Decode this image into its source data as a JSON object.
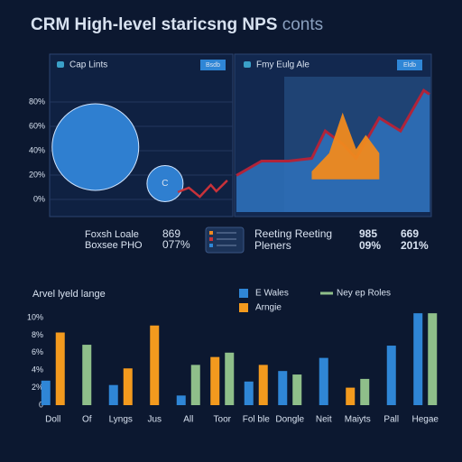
{
  "title": "CRM High-level staricsng NPS",
  "title_suffix": "conts",
  "stats": [
    {
      "label1": "Foxsh Loale",
      "label2": "Boxsee PHO",
      "num1": "869",
      "num2": "077%"
    },
    {
      "label1": "Reeting Reeting",
      "label2": "Pleners",
      "num1": "985",
      "num2": "09%",
      "num3": "669",
      "num4": "201%"
    }
  ],
  "chart_data": [
    {
      "type": "bubble",
      "header": "Cap Lints",
      "button": "Bsdb",
      "xlim": [
        0,
        10
      ],
      "ylim": [
        0,
        100
      ],
      "yticks": [
        {
          "value": 80,
          "label": "80%"
        },
        {
          "value": 60,
          "label": "60%"
        },
        {
          "value": 40,
          "label": "40%"
        },
        {
          "value": 20,
          "label": "20%"
        },
        {
          "value": 0,
          "label": "0%"
        }
      ],
      "grid": true,
      "series": [
        {
          "color": "#2f7fd0",
          "x": [
            2.5,
            6.3
          ],
          "values": [
            43,
            13
          ],
          "sizes": [
            48,
            20
          ],
          "point_labels": [
            null,
            "C"
          ]
        },
        {
          "type": "line",
          "color": "#c8323a",
          "x": [
            7.0,
            7.6,
            8.2,
            8.8,
            9.1,
            9.7
          ],
          "values": [
            6,
            9.6,
            2.2,
            11.9,
            6.7,
            15.6
          ]
        }
      ]
    },
    {
      "type": "area",
      "header": "Fmy Eulg Ale",
      "button": "Eldb",
      "xlim": [
        0,
        10
      ],
      "ylim": [
        0,
        100
      ],
      "series": [
        {
          "color": "#b0243a",
          "fill": "#2d6fb8",
          "x": [
            0,
            1.3,
            2.7,
            3.9,
            4.6,
            5.5,
            6.2,
            7.4,
            8.5,
            9.7,
            10
          ],
          "values": [
            28,
            39,
            39,
            41,
            62,
            52,
            41,
            72,
            62,
            93,
            90
          ]
        },
        {
          "color": "#f08a1e",
          "x": [
            3.9,
            4.8,
            5.5,
            6.2,
            6.7,
            7.4
          ],
          "values": [
            31,
            45,
            76,
            48,
            59,
            45
          ]
        }
      ]
    },
    {
      "type": "bar",
      "title": "Arvel lyeld lange",
      "categories": [
        "Doll",
        "Of",
        "Lyngs",
        "Jus",
        "All",
        "Toor",
        "Fol ble",
        "Dongle",
        "Neit",
        "Maiyts",
        "Pall",
        "Hegae"
      ],
      "ylim": [
        0,
        10.5
      ],
      "yticks": [
        {
          "value": 10,
          "label": "10%"
        },
        {
          "value": 8,
          "label": "8%"
        },
        {
          "value": 6,
          "label": "6%"
        },
        {
          "value": 4,
          "label": "4%"
        },
        {
          "value": 2,
          "label": "2%"
        },
        0
      ],
      "legend": "top-right",
      "series": [
        {
          "name": "E Wales",
          "color": "#2f86d6",
          "values": [
            2.8,
            null,
            2.3,
            null,
            1.1,
            null,
            2.7,
            3.9,
            5.4,
            null,
            6.8,
            10.5
          ]
        },
        {
          "name": "Arngie",
          "color": "#f39a1e",
          "values": [
            8.3,
            null,
            4.2,
            9.1,
            null,
            5.5,
            4.6,
            null,
            null,
            2.0,
            null,
            null
          ]
        },
        {
          "name": "Ney ep Roles",
          "color": "#8fbf8a",
          "values": [
            null,
            6.9,
            null,
            null,
            4.6,
            6.0,
            null,
            3.5,
            null,
            3.0,
            null,
            10.5
          ]
        }
      ]
    }
  ]
}
